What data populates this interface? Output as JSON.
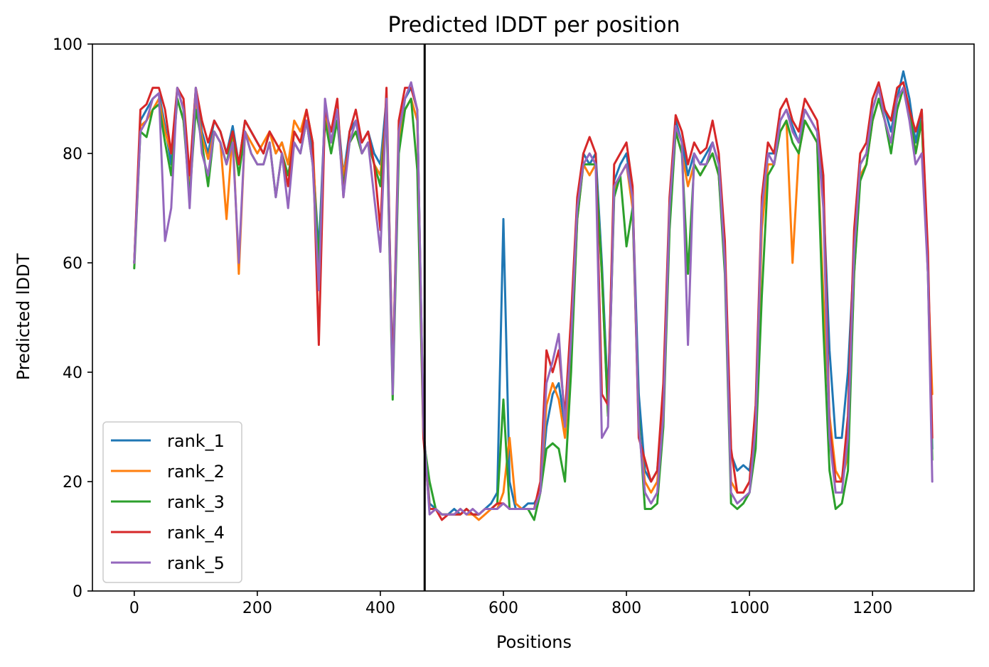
{
  "chart_data": {
    "type": "line",
    "title": "Predicted lDDT per position",
    "xlabel": "Positions",
    "ylabel": "Predicted lDDT",
    "xlim": [
      -68,
      1365
    ],
    "ylim": [
      0,
      100
    ],
    "xticks": [
      0,
      200,
      400,
      600,
      800,
      1000,
      1200
    ],
    "yticks": [
      0,
      20,
      40,
      60,
      80,
      100
    ],
    "grid": false,
    "legend_position": "lower-left",
    "vline_x": 472,
    "x": [
      0,
      10,
      20,
      30,
      40,
      50,
      60,
      70,
      80,
      90,
      100,
      110,
      120,
      130,
      140,
      150,
      160,
      170,
      180,
      190,
      200,
      210,
      220,
      230,
      240,
      250,
      260,
      270,
      280,
      290,
      300,
      310,
      320,
      330,
      340,
      350,
      360,
      370,
      380,
      390,
      400,
      410,
      420,
      430,
      440,
      450,
      460,
      470,
      480,
      490,
      500,
      510,
      520,
      530,
      540,
      550,
      560,
      570,
      580,
      590,
      600,
      610,
      620,
      630,
      640,
      650,
      660,
      670,
      680,
      690,
      700,
      710,
      720,
      730,
      740,
      750,
      760,
      770,
      780,
      790,
      800,
      810,
      820,
      830,
      840,
      850,
      860,
      870,
      880,
      890,
      900,
      910,
      920,
      930,
      940,
      950,
      960,
      970,
      980,
      990,
      1000,
      1010,
      1020,
      1030,
      1040,
      1050,
      1060,
      1070,
      1080,
      1090,
      1100,
      1110,
      1120,
      1130,
      1140,
      1150,
      1160,
      1170,
      1180,
      1190,
      1200,
      1210,
      1220,
      1230,
      1240,
      1250,
      1260,
      1270,
      1280,
      1290,
      1297
    ],
    "series": [
      {
        "name": "rank_1",
        "color": "#1f77b4",
        "values": [
          60,
          86,
          88,
          90,
          91,
          85,
          78,
          92,
          88,
          75,
          92,
          84,
          80,
          86,
          84,
          80,
          85,
          78,
          86,
          84,
          82,
          80,
          84,
          80,
          82,
          78,
          84,
          82,
          86,
          80,
          62,
          88,
          82,
          88,
          76,
          84,
          86,
          82,
          84,
          80,
          78,
          90,
          40,
          82,
          90,
          92,
          88,
          30,
          16,
          15,
          14,
          14,
          15,
          14,
          15,
          14,
          14,
          15,
          16,
          18,
          68,
          20,
          15,
          15,
          16,
          16,
          18,
          30,
          36,
          38,
          30,
          45,
          70,
          80,
          78,
          80,
          60,
          35,
          75,
          78,
          80,
          72,
          36,
          22,
          20,
          22,
          35,
          70,
          86,
          82,
          76,
          80,
          78,
          80,
          82,
          78,
          62,
          25,
          22,
          23,
          22,
          30,
          68,
          80,
          80,
          86,
          88,
          85,
          82,
          88,
          86,
          84,
          72,
          44,
          28,
          28,
          40,
          62,
          78,
          80,
          88,
          92,
          88,
          84,
          90,
          95,
          90,
          82,
          88,
          60,
          26
        ]
      },
      {
        "name": "rank_2",
        "color": "#ff7f0e",
        "values": [
          60,
          85,
          86,
          88,
          90,
          84,
          80,
          90,
          86,
          74,
          90,
          83,
          79,
          84,
          82,
          68,
          84,
          58,
          84,
          82,
          80,
          82,
          84,
          80,
          82,
          78,
          86,
          84,
          88,
          82,
          58,
          88,
          82,
          86,
          76,
          82,
          84,
          80,
          82,
          78,
          76,
          88,
          38,
          82,
          88,
          90,
          86,
          30,
          15,
          15,
          14,
          14,
          14,
          15,
          14,
          14,
          13,
          14,
          15,
          15,
          18,
          28,
          16,
          15,
          15,
          15,
          18,
          34,
          38,
          35,
          28,
          42,
          68,
          78,
          76,
          78,
          58,
          32,
          73,
          76,
          78,
          70,
          30,
          20,
          18,
          20,
          33,
          68,
          84,
          80,
          74,
          78,
          76,
          78,
          80,
          76,
          60,
          20,
          18,
          18,
          20,
          28,
          66,
          78,
          78,
          84,
          86,
          60,
          80,
          86,
          84,
          82,
          54,
          32,
          22,
          20,
          25,
          58,
          76,
          78,
          86,
          90,
          86,
          82,
          88,
          92,
          88,
          80,
          86,
          58,
          36
        ]
      },
      {
        "name": "rank_3",
        "color": "#2ca02c",
        "values": [
          59,
          84,
          83,
          88,
          89,
          82,
          76,
          90,
          86,
          72,
          88,
          82,
          74,
          84,
          82,
          78,
          84,
          76,
          84,
          80,
          78,
          78,
          82,
          72,
          80,
          76,
          82,
          80,
          86,
          78,
          60,
          86,
          80,
          86,
          74,
          82,
          84,
          80,
          82,
          78,
          74,
          88,
          35,
          80,
          88,
          90,
          77,
          28,
          20,
          15,
          14,
          14,
          14,
          14,
          15,
          14,
          14,
          15,
          15,
          16,
          35,
          15,
          15,
          15,
          15,
          13,
          18,
          26,
          27,
          26,
          20,
          40,
          68,
          78,
          78,
          78,
          58,
          32,
          72,
          76,
          63,
          70,
          32,
          15,
          15,
          16,
          30,
          66,
          84,
          80,
          58,
          78,
          76,
          78,
          80,
          76,
          58,
          16,
          15,
          16,
          18,
          26,
          54,
          76,
          78,
          84,
          86,
          82,
          80,
          86,
          84,
          82,
          48,
          22,
          15,
          16,
          22,
          58,
          75,
          78,
          86,
          90,
          86,
          80,
          88,
          92,
          88,
          80,
          86,
          58,
          24
        ]
      },
      {
        "name": "rank_4",
        "color": "#d62728",
        "values": [
          60,
          88,
          89,
          92,
          92,
          88,
          80,
          92,
          90,
          76,
          92,
          86,
          82,
          86,
          84,
          80,
          84,
          78,
          86,
          84,
          82,
          80,
          84,
          82,
          80,
          74,
          84,
          82,
          88,
          82,
          45,
          88,
          84,
          90,
          72,
          84,
          88,
          82,
          84,
          78,
          66,
          92,
          38,
          86,
          92,
          92,
          88,
          28,
          15,
          15,
          13,
          14,
          14,
          14,
          15,
          14,
          14,
          15,
          15,
          16,
          16,
          15,
          15,
          15,
          15,
          15,
          20,
          44,
          40,
          44,
          32,
          50,
          72,
          80,
          83,
          80,
          36,
          34,
          78,
          80,
          82,
          74,
          28,
          24,
          20,
          22,
          38,
          72,
          87,
          84,
          78,
          82,
          80,
          81,
          86,
          80,
          64,
          26,
          18,
          18,
          20,
          34,
          72,
          82,
          80,
          88,
          90,
          86,
          84,
          90,
          88,
          86,
          76,
          30,
          20,
          20,
          32,
          66,
          80,
          82,
          90,
          93,
          88,
          86,
          92,
          93,
          88,
          84,
          88,
          62,
          28
        ]
      },
      {
        "name": "rank_5",
        "color": "#9467bd",
        "values": [
          60,
          84,
          86,
          90,
          91,
          64,
          70,
          92,
          88,
          70,
          92,
          80,
          76,
          84,
          82,
          78,
          82,
          60,
          84,
          80,
          78,
          78,
          82,
          72,
          80,
          70,
          82,
          80,
          86,
          78,
          55,
          90,
          82,
          88,
          72,
          82,
          86,
          80,
          82,
          72,
          62,
          90,
          36,
          84,
          90,
          93,
          88,
          30,
          14,
          15,
          14,
          14,
          14,
          15,
          14,
          15,
          14,
          15,
          15,
          15,
          16,
          15,
          15,
          15,
          15,
          15,
          18,
          38,
          42,
          47,
          30,
          46,
          70,
          78,
          80,
          78,
          28,
          30,
          74,
          76,
          78,
          72,
          30,
          18,
          16,
          18,
          32,
          70,
          85,
          82,
          45,
          80,
          78,
          78,
          82,
          78,
          60,
          18,
          16,
          17,
          18,
          30,
          70,
          80,
          78,
          86,
          88,
          84,
          82,
          88,
          86,
          84,
          70,
          28,
          18,
          18,
          28,
          62,
          78,
          80,
          88,
          92,
          86,
          82,
          90,
          92,
          86,
          78,
          80,
          58,
          20
        ]
      }
    ]
  }
}
